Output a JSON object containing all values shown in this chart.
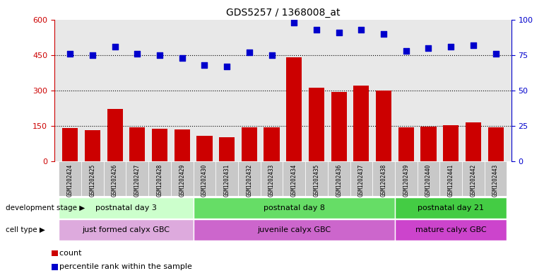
{
  "title": "GDS5257 / 1368008_at",
  "categories": [
    "GSM1202424",
    "GSM1202425",
    "GSM1202426",
    "GSM1202427",
    "GSM1202428",
    "GSM1202429",
    "GSM1202430",
    "GSM1202431",
    "GSM1202432",
    "GSM1202433",
    "GSM1202434",
    "GSM1202435",
    "GSM1202436",
    "GSM1202437",
    "GSM1202438",
    "GSM1202439",
    "GSM1202440",
    "GSM1202441",
    "GSM1202442",
    "GSM1202443"
  ],
  "counts": [
    140,
    133,
    220,
    143,
    137,
    135,
    108,
    103,
    143,
    143,
    440,
    310,
    293,
    320,
    298,
    143,
    148,
    152,
    163,
    143
  ],
  "percentile_ranks": [
    76,
    75,
    81,
    76,
    75,
    73,
    68,
    67,
    77,
    75,
    98,
    93,
    91,
    93,
    90,
    78,
    80,
    81,
    82,
    76
  ],
  "left_ylim": [
    0,
    600
  ],
  "left_yticks": [
    0,
    150,
    300,
    450,
    600
  ],
  "right_ylim": [
    0,
    100
  ],
  "right_yticks": [
    0,
    25,
    50,
    75,
    100
  ],
  "bar_color": "#cc0000",
  "dot_color": "#0000cc",
  "plot_bg_color": "#e8e8e8",
  "development_stages": [
    {
      "label": "postnatal day 3",
      "start": 0,
      "end": 6,
      "color": "#ccffcc"
    },
    {
      "label": "postnatal day 8",
      "start": 6,
      "end": 15,
      "color": "#66dd66"
    },
    {
      "label": "postnatal day 21",
      "start": 15,
      "end": 20,
      "color": "#44cc44"
    }
  ],
  "cell_types": [
    {
      "label": "just formed calyx GBC",
      "start": 0,
      "end": 6,
      "color": "#ddaadd"
    },
    {
      "label": "juvenile calyx GBC",
      "start": 6,
      "end": 15,
      "color": "#cc66cc"
    },
    {
      "label": "mature calyx GBC",
      "start": 15,
      "end": 20,
      "color": "#cc44cc"
    }
  ],
  "dev_stage_label": "development stage",
  "cell_type_label": "cell type",
  "legend_count_label": "count",
  "legend_pct_label": "percentile rank within the sample",
  "n": 20,
  "gridline_yticks": [
    150,
    300,
    450
  ],
  "xticklabel_bg": "#c8c8c8"
}
